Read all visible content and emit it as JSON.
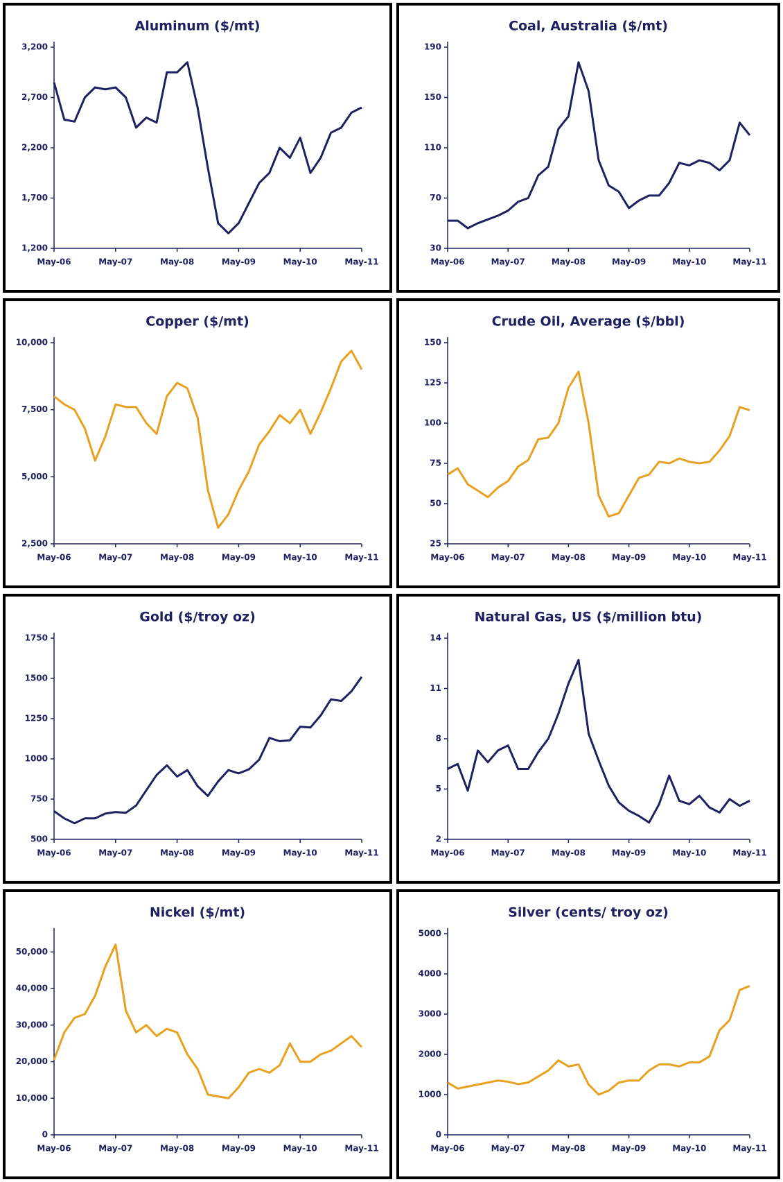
{
  "chart_data": [
    {
      "type": "line",
      "title": "Aluminum ($/mt)",
      "color": "#1f2060",
      "categories": [
        "May-06",
        null,
        null,
        null,
        null,
        null,
        "May-07",
        null,
        null,
        null,
        null,
        null,
        "May-08",
        null,
        null,
        null,
        null,
        null,
        "May-09",
        null,
        null,
        null,
        null,
        null,
        "May-10",
        null,
        null,
        null,
        null,
        null,
        "May-11"
      ],
      "values": [
        2850,
        2480,
        2460,
        2700,
        2800,
        2780,
        2800,
        2700,
        2400,
        2500,
        2450,
        2950,
        2950,
        3050,
        2600,
        2000,
        1450,
        1350,
        1450,
        1650,
        1850,
        1950,
        2200,
        2100,
        2300,
        1950,
        2100,
        2350,
        2400,
        2550,
        2600
      ],
      "ylim": [
        1200,
        3200
      ],
      "yticks": [
        {
          "value": 1200,
          "label": "1,200"
        },
        {
          "value": 1700,
          "label": "1,700"
        },
        {
          "value": 2200,
          "label": "2,200"
        },
        {
          "value": 2700,
          "label": "2,700"
        },
        {
          "value": 3200,
          "label": "3,200"
        }
      ]
    },
    {
      "type": "line",
      "title": "Coal, Australia ($/mt)",
      "color": "#1f2060",
      "categories": [
        "May-06",
        null,
        null,
        null,
        null,
        null,
        "May-07",
        null,
        null,
        null,
        null,
        null,
        "May-08",
        null,
        null,
        null,
        null,
        null,
        "May-09",
        null,
        null,
        null,
        null,
        null,
        "May-10",
        null,
        null,
        null,
        null,
        null,
        "May-11"
      ],
      "values": [
        52,
        52,
        46,
        50,
        53,
        56,
        60,
        67,
        70,
        88,
        95,
        125,
        135,
        178,
        155,
        100,
        80,
        75,
        62,
        68,
        72,
        72,
        82,
        98,
        96,
        100,
        98,
        92,
        100,
        130,
        120
      ],
      "ylim": [
        30,
        190
      ],
      "yticks": [
        30,
        70,
        110,
        150,
        190
      ]
    },
    {
      "type": "line",
      "title": "Copper ($/mt)",
      "color": "#e8a020",
      "categories": [
        "May-06",
        null,
        null,
        null,
        null,
        null,
        "May-07",
        null,
        null,
        null,
        null,
        null,
        "May-08",
        null,
        null,
        null,
        null,
        null,
        "May-09",
        null,
        null,
        null,
        null,
        null,
        "May-10",
        null,
        null,
        null,
        null,
        null,
        "May-11"
      ],
      "values": [
        8000,
        7700,
        7500,
        6800,
        5600,
        6500,
        7700,
        7600,
        7600,
        7000,
        6600,
        8000,
        8500,
        8300,
        7200,
        4500,
        3100,
        3600,
        4500,
        5200,
        6200,
        6700,
        7300,
        7000,
        7500,
        6600,
        7400,
        8300,
        9300,
        9700,
        9000
      ],
      "ylim": [
        2500,
        10000
      ],
      "yticks": [
        {
          "value": 2500,
          "label": "2,500"
        },
        {
          "value": 5000,
          "label": "5,000"
        },
        {
          "value": 7500,
          "label": "7,500"
        },
        {
          "value": 10000,
          "label": "10,000"
        }
      ]
    },
    {
      "type": "line",
      "title": "Crude Oil, Average ($/bbl)",
      "color": "#e8a020",
      "categories": [
        "May-06",
        null,
        null,
        null,
        null,
        null,
        "May-07",
        null,
        null,
        null,
        null,
        null,
        "May-08",
        null,
        null,
        null,
        null,
        null,
        "May-09",
        null,
        null,
        null,
        null,
        null,
        "May-10",
        null,
        null,
        null,
        null,
        null,
        "May-11"
      ],
      "values": [
        68,
        72,
        62,
        58,
        54,
        60,
        64,
        73,
        77,
        90,
        91,
        100,
        122,
        132,
        100,
        55,
        42,
        44,
        55,
        66,
        68,
        76,
        75,
        78,
        76,
        75,
        76,
        83,
        92,
        110,
        108
      ],
      "ylim": [
        25,
        150
      ],
      "yticks": [
        25,
        50,
        75,
        100,
        125,
        150
      ]
    },
    {
      "type": "line",
      "title": "Gold ($/troy oz)",
      "color": "#1f2060",
      "categories": [
        "May-06",
        null,
        null,
        null,
        null,
        null,
        "May-07",
        null,
        null,
        null,
        null,
        null,
        "May-08",
        null,
        null,
        null,
        null,
        null,
        "May-09",
        null,
        null,
        null,
        null,
        null,
        "May-10",
        null,
        null,
        null,
        null,
        null,
        "May-11"
      ],
      "values": [
        675,
        630,
        600,
        630,
        630,
        660,
        670,
        665,
        710,
        805,
        900,
        960,
        890,
        930,
        830,
        770,
        860,
        930,
        910,
        935,
        995,
        1130,
        1110,
        1115,
        1200,
        1195,
        1270,
        1370,
        1360,
        1420,
        1510
      ],
      "ylim": [
        500,
        1750
      ],
      "yticks": [
        500,
        750,
        1000,
        1250,
        1500,
        1750
      ]
    },
    {
      "type": "line",
      "title": "Natural Gas, US ($/million btu)",
      "color": "#1f2060",
      "categories": [
        "May-06",
        null,
        null,
        null,
        null,
        null,
        "May-07",
        null,
        null,
        null,
        null,
        null,
        "May-08",
        null,
        null,
        null,
        null,
        null,
        "May-09",
        null,
        null,
        null,
        null,
        null,
        "May-10",
        null,
        null,
        null,
        null,
        null,
        "May-11"
      ],
      "values": [
        6.2,
        6.5,
        4.9,
        7.3,
        6.6,
        7.3,
        7.6,
        6.2,
        6.2,
        7.2,
        8.0,
        9.5,
        11.3,
        12.7,
        8.3,
        6.7,
        5.2,
        4.2,
        3.7,
        3.4,
        3.0,
        4.1,
        5.8,
        4.3,
        4.1,
        4.6,
        3.9,
        3.6,
        4.4,
        4.0,
        4.3
      ],
      "ylim": [
        2,
        14
      ],
      "yticks": [
        2,
        5,
        8,
        11,
        14
      ]
    },
    {
      "type": "line",
      "title": "Nickel ($/mt)",
      "color": "#e8a020",
      "categories": [
        "May-06",
        null,
        null,
        null,
        null,
        null,
        "May-07",
        null,
        null,
        null,
        null,
        null,
        "May-08",
        null,
        null,
        null,
        null,
        null,
        "May-09",
        null,
        null,
        null,
        null,
        null,
        "May-10",
        null,
        null,
        null,
        null,
        null,
        "May-11"
      ],
      "values": [
        20500,
        28000,
        32000,
        33000,
        38000,
        46000,
        52000,
        34000,
        28000,
        30000,
        27000,
        29000,
        28000,
        22000,
        18000,
        11000,
        10500,
        10000,
        13000,
        17000,
        18000,
        17000,
        19000,
        25000,
        20000,
        20000,
        22000,
        23000,
        25000,
        27000,
        24000
      ],
      "ylim": [
        0,
        55000
      ],
      "yticks": [
        0,
        {
          "value": 10000,
          "label": "10,000"
        },
        {
          "value": 20000,
          "label": "20,000"
        },
        {
          "value": 30000,
          "label": "30,000"
        },
        {
          "value": 40000,
          "label": "40,000"
        },
        {
          "value": 50000,
          "label": "50,000"
        }
      ]
    },
    {
      "type": "line",
      "title": "Silver (cents/ troy oz)",
      "color": "#e8a020",
      "categories": [
        "May-06",
        null,
        null,
        null,
        null,
        null,
        "May-07",
        null,
        null,
        null,
        null,
        null,
        "May-08",
        null,
        null,
        null,
        null,
        null,
        "May-09",
        null,
        null,
        null,
        null,
        null,
        "May-10",
        null,
        null,
        null,
        null,
        null,
        "May-11"
      ],
      "values": [
        1300,
        1150,
        1200,
        1250,
        1300,
        1350,
        1320,
        1260,
        1300,
        1450,
        1600,
        1850,
        1700,
        1750,
        1250,
        1000,
        1100,
        1300,
        1350,
        1350,
        1600,
        1750,
        1750,
        1700,
        1800,
        1800,
        1950,
        2600,
        2850,
        3600,
        3700
      ],
      "ylim": [
        0,
        5000
      ],
      "yticks": [
        0,
        1000,
        2000,
        3000,
        4000,
        5000
      ]
    }
  ]
}
